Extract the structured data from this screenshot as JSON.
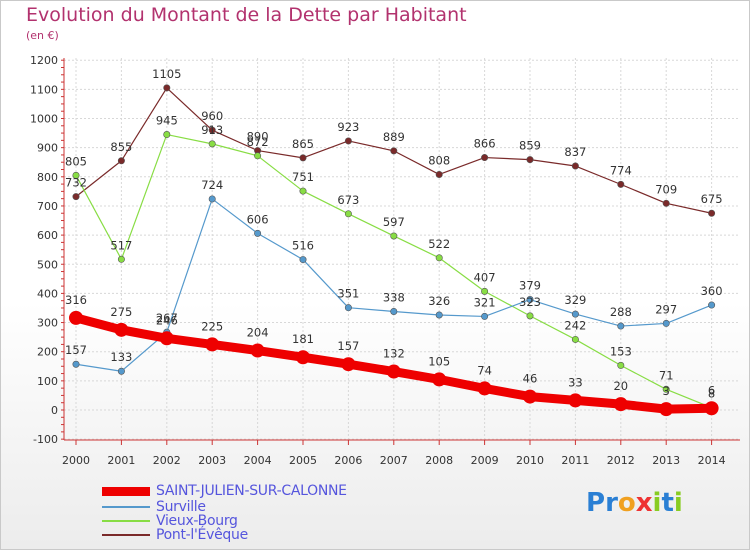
{
  "title": "Evolution du Montant de la Dette par Habitant",
  "unit": "(en €)",
  "logo_text": "Proxiti",
  "chart_data": {
    "type": "line",
    "title": "Evolution du Montant de la Dette par Habitant",
    "ylabel": "(en €)",
    "x": [
      "2000",
      "2001",
      "2002",
      "2003",
      "2004",
      "2005",
      "2006",
      "2007",
      "2008",
      "2009",
      "2010",
      "2011",
      "2012",
      "2013",
      "2014"
    ],
    "ylim": [
      -100,
      1200
    ],
    "yticks": [
      -100,
      0,
      100,
      200,
      300,
      400,
      500,
      600,
      700,
      800,
      900,
      1000,
      1100,
      1200
    ],
    "grid": true,
    "legend_position": "bottom-left",
    "series": [
      {
        "name": "SAINT-JULIEN-SUR-CALONNE",
        "color": "#ee0000",
        "values": [
          316,
          275,
          246,
          225,
          204,
          181,
          157,
          132,
          105,
          74,
          46,
          33,
          20,
          3,
          6
        ],
        "labels": [
          "316",
          "275",
          "246",
          "225",
          "204",
          "181",
          "157",
          "132",
          "105",
          "74",
          "46",
          "33",
          "20",
          "3",
          "6"
        ]
      },
      {
        "name": "Surville",
        "color": "#5599cc",
        "values": [
          157,
          133,
          267,
          724,
          606,
          516,
          351,
          338,
          326,
          321,
          379,
          329,
          288,
          297,
          360
        ],
        "labels": [
          "157",
          "133",
          "267",
          "724",
          "606",
          "516",
          "351",
          "338",
          "326",
          "321",
          "379",
          "329",
          "288",
          "297",
          "360"
        ]
      },
      {
        "name": "Vieux-Bourg",
        "color": "#88dd44",
        "values": [
          805,
          517,
          945,
          913,
          872,
          751,
          673,
          597,
          522,
          407,
          323,
          242,
          153,
          71,
          8
        ],
        "labels": [
          "805",
          "517",
          "945",
          "913",
          "872",
          "751",
          "673",
          "597",
          "522",
          "407",
          "323",
          "242",
          "153",
          "71",
          "8"
        ]
      },
      {
        "name": "Pont-l'Évêque",
        "color": "#7a2a2a",
        "values": [
          732,
          855,
          1105,
          960,
          890,
          865,
          923,
          889,
          808,
          866,
          859,
          837,
          774,
          709,
          675
        ],
        "labels": [
          "732",
          "855",
          "1105",
          "960",
          "890",
          "865",
          "923",
          "889",
          "808",
          "866",
          "859",
          "837",
          "774",
          "709",
          "675"
        ]
      }
    ]
  }
}
